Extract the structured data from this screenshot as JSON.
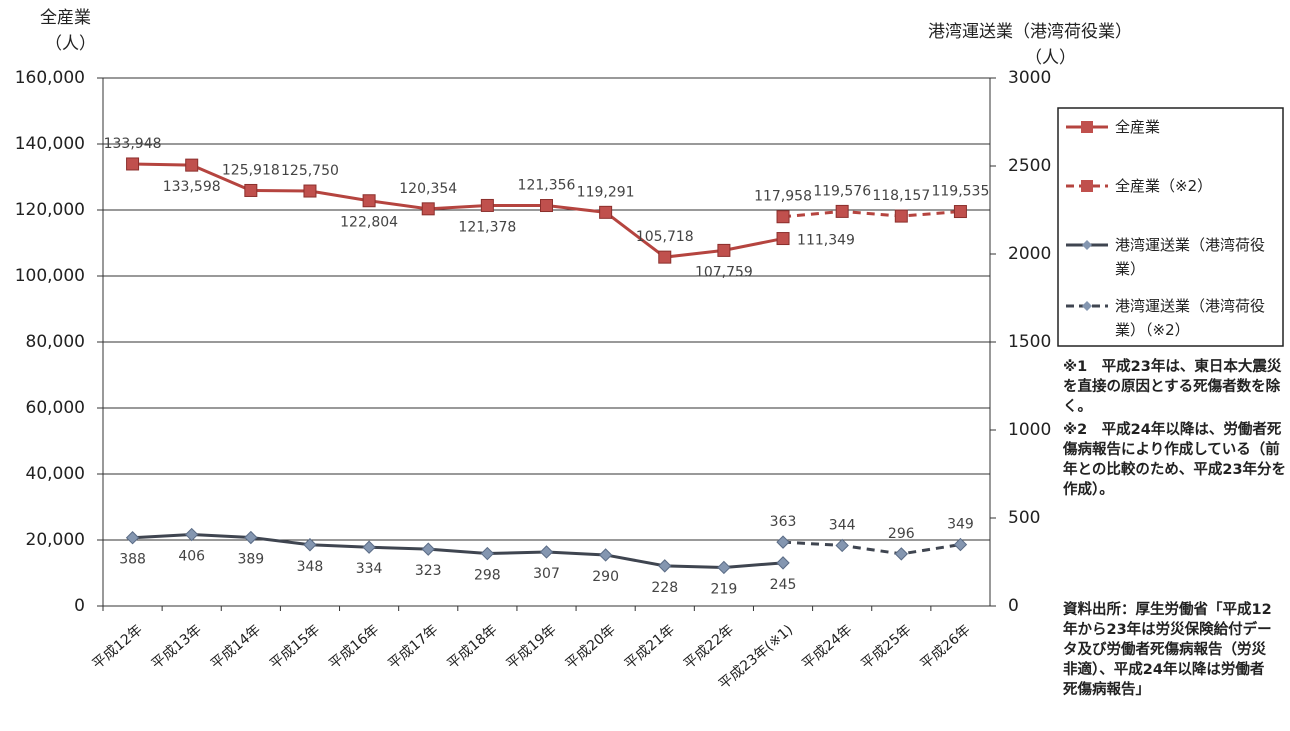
{
  "chart_data": {
    "type": "line",
    "y_label": "全産業",
    "y_unit": "（人）",
    "y2_label": "港湾運送業（港湾荷役業）",
    "y2_unit": "（人）",
    "categories": [
      "平成12年",
      "平成13年",
      "平成14年",
      "平成15年",
      "平成16年",
      "平成17年",
      "平成18年",
      "平成19年",
      "平成20年",
      "平成21年",
      "平成22年",
      "平成23年(※1)",
      "平成24年",
      "平成25年",
      "平成26年"
    ],
    "ylim": [
      0,
      160000
    ],
    "yticks": [
      0,
      {
        "value": 20000,
        "label": "20,000"
      },
      {
        "value": 40000,
        "label": "40,000"
      },
      {
        "value": 60000,
        "label": "60,000"
      },
      {
        "value": 80000,
        "label": "80,000"
      },
      {
        "value": 100000,
        "label": "100,000"
      },
      {
        "value": 120000,
        "label": "120,000"
      },
      {
        "value": 140000,
        "label": "140,000"
      },
      {
        "value": 160000,
        "label": "160,000"
      }
    ],
    "y2lim": [
      0,
      3000
    ],
    "y2ticks": [
      0,
      500,
      1000,
      1500,
      2000,
      2500,
      3000
    ],
    "grid": true,
    "series": [
      {
        "name": "全産業",
        "color": "#b5443f",
        "marker_color": "#c0504d",
        "marker": "square",
        "line_style": "solid",
        "values": [
          133948,
          133598,
          125918,
          125750,
          122804,
          120354,
          121378,
          121356,
          119291,
          105718,
          107759,
          111349,
          null,
          null,
          null
        ],
        "value_labels": [
          "133,948",
          "133,598",
          "125,918",
          "125,750",
          "122,804",
          "120,354",
          "121,378",
          "121,356",
          "119,291",
          "105,718",
          "107,759",
          "111,349",
          null,
          null,
          null
        ]
      },
      {
        "name": "全産業（※2）",
        "color": "#b5443f",
        "marker_color": "#c0504d",
        "marker": "square",
        "line_style": "dashed",
        "values": [
          null,
          null,
          null,
          null,
          null,
          null,
          null,
          null,
          null,
          null,
          null,
          117958,
          119576,
          118157,
          119535
        ],
        "value_labels": [
          null,
          null,
          null,
          null,
          null,
          null,
          null,
          null,
          null,
          null,
          null,
          "117,958",
          "119,576",
          "118,157",
          "119,535"
        ]
      },
      {
        "name": "港湾運送業（港湾荷役業）",
        "color": "#3f4550",
        "marker_color": "#8496b0",
        "marker": "diamond",
        "line_style": "solid",
        "axis": "y2",
        "values": [
          388,
          406,
          389,
          348,
          334,
          323,
          298,
          307,
          290,
          228,
          219,
          245,
          null,
          null,
          null
        ]
      },
      {
        "name": "港湾運送業（港湾荷役業）（※2）",
        "color": "#3f4550",
        "marker_color": "#8496b0",
        "marker": "diamond",
        "line_style": "dashed",
        "axis": "y2",
        "values": [
          null,
          null,
          null,
          null,
          null,
          null,
          null,
          null,
          null,
          null,
          null,
          363,
          344,
          296,
          349
        ]
      }
    ],
    "notes": [
      "※1　平成23年は、東日本大震災を直接の原因とする死傷者数を除く。",
      "※2　平成24年以降は、労働者死傷病報告により作成している（前年との比較のため、平成23年分を作成）。"
    ],
    "source": "資料出所：厚生労働省「平成12年から23年は労災保険給付データ及び労働者死傷病報告（労災非適）、平成24年以降は労働者死傷病報告」"
  }
}
